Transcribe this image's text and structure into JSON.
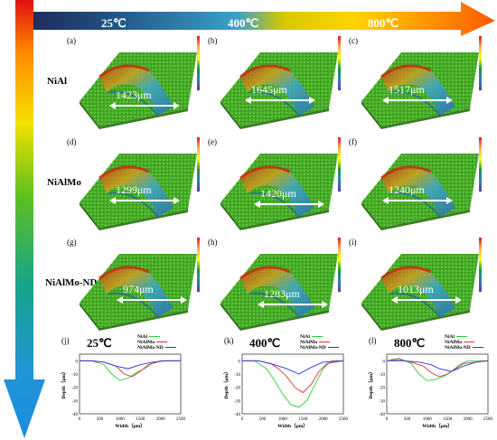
{
  "temperatures": [
    "25℃",
    "400℃",
    "800℃"
  ],
  "rows": [
    {
      "label": "NiAl",
      "panels": [
        {
          "id": "(a)",
          "width": "1423μm"
        },
        {
          "id": "(b)",
          "width": "1645μm"
        },
        {
          "id": "(c)",
          "width": "1517μm"
        }
      ]
    },
    {
      "label": "NiAlMo",
      "panels": [
        {
          "id": "(d)",
          "width": "1299μm"
        },
        {
          "id": "(e)",
          "width": "1420μm"
        },
        {
          "id": "(f)",
          "width": "1240μm"
        }
      ]
    },
    {
      "label": "NiAlMo-ND",
      "panels": [
        {
          "id": "(g)",
          "width": "974μm"
        },
        {
          "id": "(h)",
          "width": "1283μm"
        },
        {
          "id": "(i)",
          "width": "1013μm"
        }
      ]
    }
  ],
  "colors": {
    "arrow_start": "#1e2a5a",
    "arrow_mid": "#ffd400",
    "arrow_end": "#ff5a00",
    "surface": "#4caf27",
    "track": "#3a9ad0"
  },
  "chart_data": [
    {
      "type": "line",
      "panel": "(j)",
      "title": "25℃",
      "xlabel": "Width（μm）",
      "ylabel": "Depth（μm）",
      "xlim": [
        0,
        2500
      ],
      "ylim": [
        -40,
        5
      ],
      "xticks": [
        0,
        500,
        1000,
        1500,
        2000,
        2500
      ],
      "yticks": [
        0,
        -10,
        -20,
        -30,
        -40
      ],
      "series": [
        {
          "name": "NiAl",
          "color": "#33cc33",
          "x": [
            0,
            300,
            600,
            800,
            1000,
            1200,
            1400,
            1600,
            1800,
            2000,
            2200,
            2500
          ],
          "y": [
            0,
            0,
            -3,
            -10,
            -15,
            -13,
            -9,
            -6,
            -2,
            0,
            0,
            0
          ]
        },
        {
          "name": "NiAlMo",
          "color": "#e03030",
          "x": [
            0,
            300,
            600,
            900,
            1100,
            1300,
            1500,
            1700,
            1900,
            2100,
            2500
          ],
          "y": [
            0,
            0,
            -1,
            -4,
            -10,
            -12,
            -8,
            -3,
            -1,
            0,
            0
          ]
        },
        {
          "name": "NiAlMo-ND",
          "color": "#3030e0",
          "x": [
            0,
            300,
            600,
            900,
            1200,
            1500,
            1800,
            2100,
            2500
          ],
          "y": [
            0,
            0,
            -1,
            -4,
            -6,
            -3,
            -1,
            0,
            0
          ]
        }
      ]
    },
    {
      "type": "line",
      "panel": "(k)",
      "title": "400℃",
      "xlabel": "Width（μm）",
      "ylabel": "Depth（μm）",
      "xlim": [
        0,
        2500
      ],
      "ylim": [
        -40,
        5
      ],
      "xticks": [
        0,
        500,
        1000,
        1500,
        2000,
        2500
      ],
      "yticks": [
        0,
        -10,
        -20,
        -30,
        -40
      ],
      "series": [
        {
          "name": "NiAl",
          "color": "#33cc33",
          "x": [
            0,
            300,
            600,
            800,
            1000,
            1200,
            1400,
            1600,
            1800,
            2000,
            2200,
            2500
          ],
          "y": [
            0,
            0,
            -6,
            -15,
            -25,
            -33,
            -35,
            -30,
            -18,
            -6,
            0,
            0
          ]
        },
        {
          "name": "NiAlMo",
          "color": "#e03030",
          "x": [
            0,
            400,
            700,
            900,
            1100,
            1300,
            1500,
            1700,
            1900,
            2100,
            2500
          ],
          "y": [
            0,
            0,
            -2,
            -6,
            -12,
            -20,
            -24,
            -18,
            -8,
            -2,
            0
          ]
        },
        {
          "name": "NiAlMo-ND",
          "color": "#3030e0",
          "x": [
            0,
            400,
            800,
            1100,
            1400,
            1700,
            2000,
            2500
          ],
          "y": [
            0,
            0,
            -3,
            -6,
            -10,
            -5,
            -1,
            0
          ]
        }
      ]
    },
    {
      "type": "line",
      "panel": "(l)",
      "title": "800℃",
      "xlabel": "Width（μm）",
      "ylabel": "Depth（μm）",
      "xlim": [
        0,
        2500
      ],
      "ylim": [
        -40,
        5
      ],
      "xticks": [
        0,
        500,
        1000,
        1500,
        2000,
        2500
      ],
      "yticks": [
        0,
        -10,
        -20,
        -30,
        -40
      ],
      "series": [
        {
          "name": "NiAl",
          "color": "#33cc33",
          "x": [
            0,
            300,
            600,
            800,
            1000,
            1200,
            1400,
            1600,
            1800,
            2000,
            2500
          ],
          "y": [
            0,
            2,
            -2,
            -10,
            -15,
            -14,
            -12,
            -8,
            -3,
            0,
            0
          ]
        },
        {
          "name": "NiAlMo",
          "color": "#e03030",
          "x": [
            0,
            300,
            600,
            900,
            1100,
            1300,
            1500,
            1700,
            1900,
            2500
          ],
          "y": [
            0,
            1,
            -1,
            -4,
            -9,
            -12,
            -10,
            -6,
            -2,
            0
          ]
        },
        {
          "name": "NiAlMo-ND",
          "color": "#3030e0",
          "x": [
            0,
            400,
            800,
            1100,
            1300,
            1600,
            1900,
            2200,
            2500
          ],
          "y": [
            0,
            0,
            -1,
            -3,
            -6,
            -8,
            -4,
            -1,
            0
          ]
        }
      ]
    }
  ]
}
